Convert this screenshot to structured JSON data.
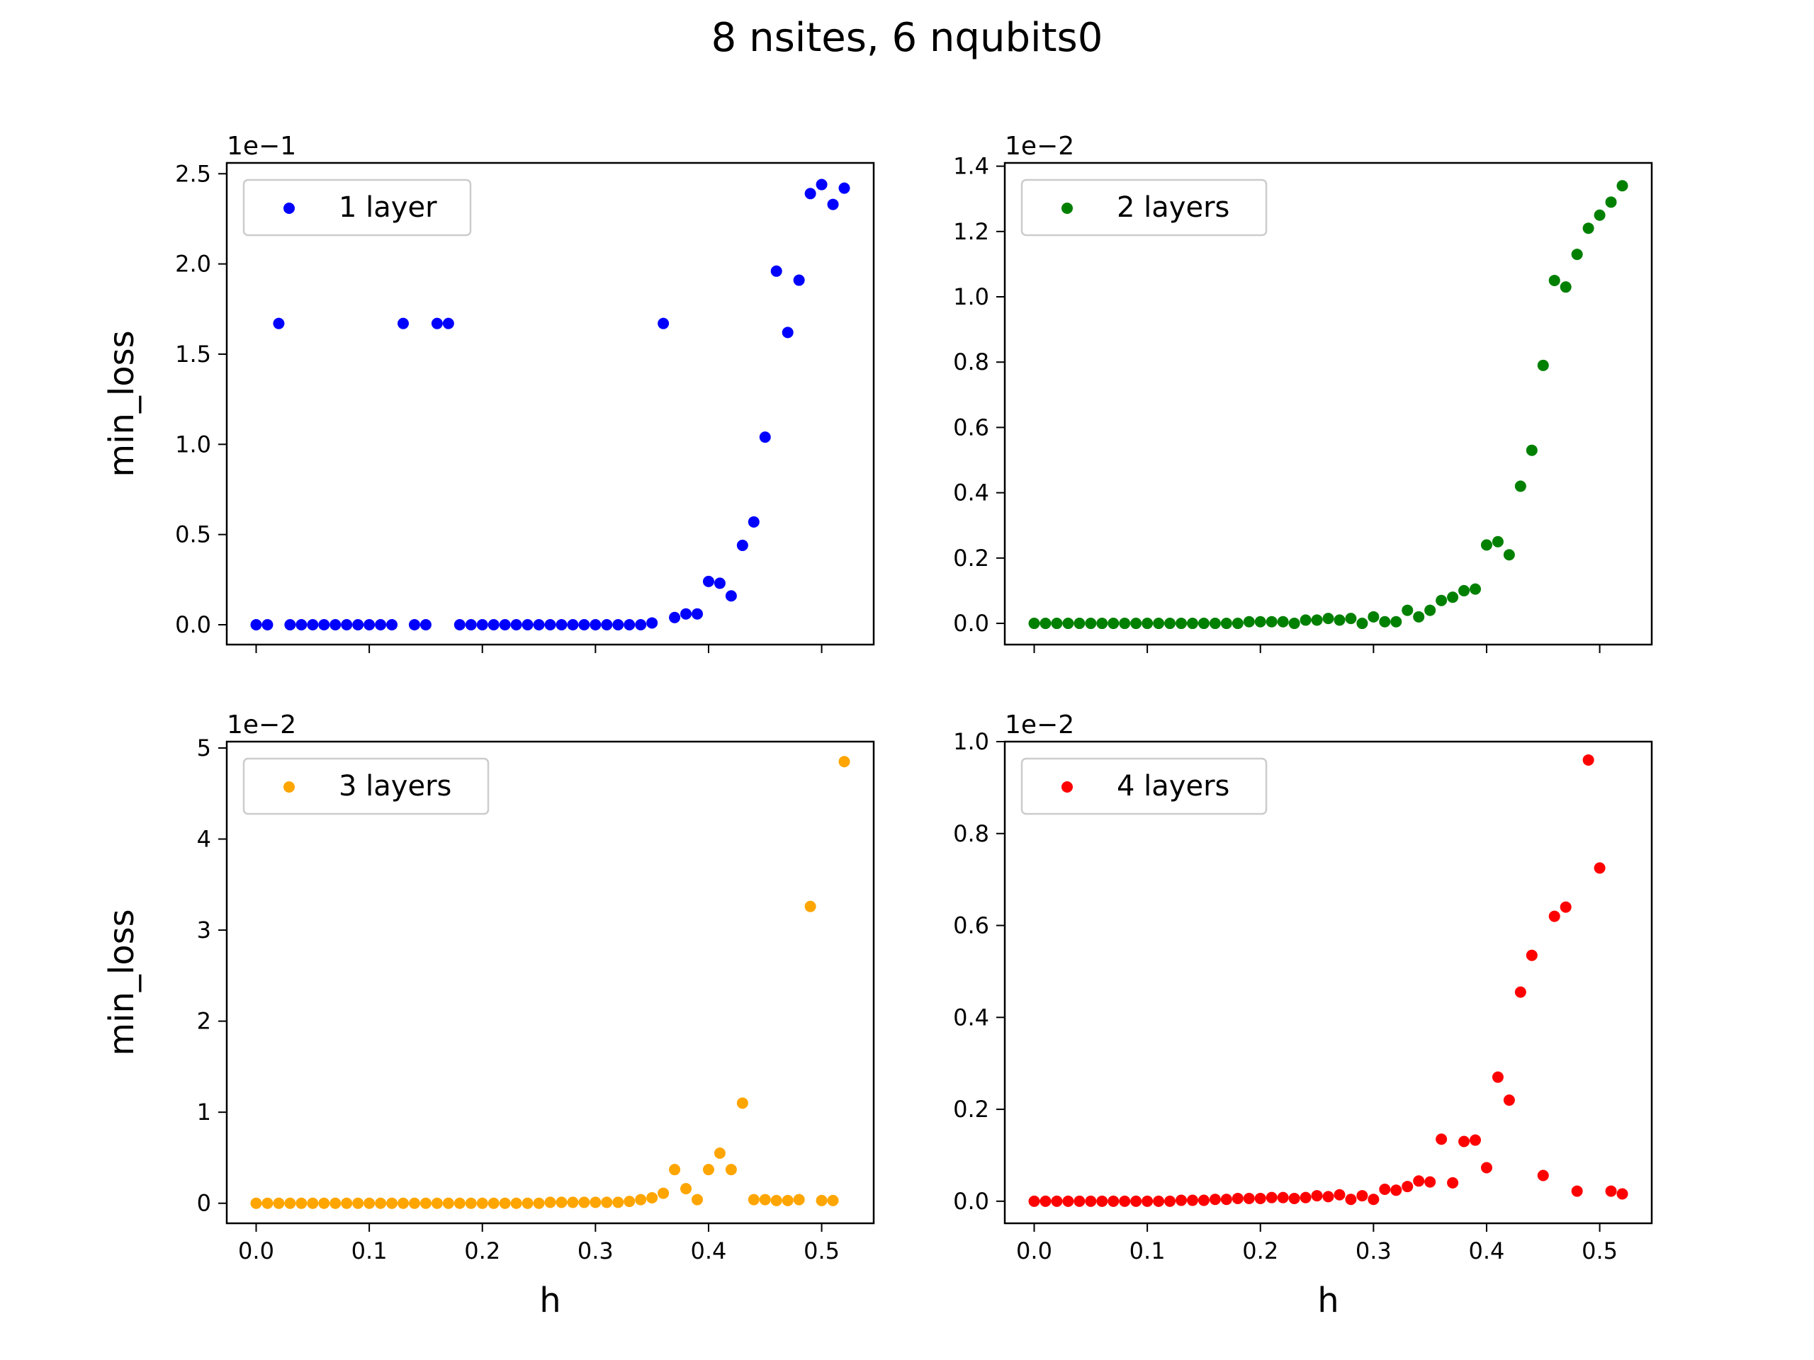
{
  "figure": {
    "title": "8 nsites, 6 nqubits0"
  },
  "chart_data": [
    {
      "type": "scatter",
      "panel": "top-left",
      "color": "#0000ff",
      "legend": "1 layer",
      "legend_placement": "top-left",
      "xlabel": "",
      "ylabel": "min_loss",
      "y_multiplier": "1e−1",
      "xlim": [
        -0.026,
        0.546
      ],
      "ylim": [
        -0.11,
        2.56
      ],
      "xticks": [],
      "yticks": [
        "0.0",
        "0.5",
        "1.0",
        "1.5",
        "2.0",
        "2.5"
      ],
      "ytick_values": [
        0.0,
        0.5,
        1.0,
        1.5,
        2.0,
        2.5
      ],
      "grid": false,
      "x": [
        0.0,
        0.01,
        0.02,
        0.03,
        0.04,
        0.05,
        0.06,
        0.07,
        0.08,
        0.09,
        0.1,
        0.11,
        0.12,
        0.13,
        0.14,
        0.15,
        0.16,
        0.17,
        0.18,
        0.19,
        0.2,
        0.21,
        0.22,
        0.23,
        0.24,
        0.25,
        0.26,
        0.27,
        0.28,
        0.29,
        0.3,
        0.31,
        0.32,
        0.33,
        0.34,
        0.35,
        0.36,
        0.37,
        0.38,
        0.39,
        0.4,
        0.41,
        0.42,
        0.43,
        0.44,
        0.45,
        0.46,
        0.47,
        0.48,
        0.49,
        0.5,
        0.51,
        0.52
      ],
      "y": [
        0.0,
        0.0,
        1.67,
        0.0,
        0.0,
        0.0,
        0.0,
        0.0,
        0.0,
        0.0,
        0.0,
        0.0,
        0.0,
        1.67,
        0.0,
        0.0,
        1.67,
        1.67,
        0.0,
        0.0,
        0.0,
        0.0,
        0.0,
        0.0,
        0.0,
        0.0,
        0.0,
        0.0,
        0.0,
        0.0,
        0.0,
        0.0,
        0.0,
        0.0,
        0.0,
        0.01,
        1.67,
        0.04,
        0.06,
        0.06,
        0.24,
        0.23,
        0.16,
        0.44,
        0.57,
        1.04,
        1.96,
        1.62,
        1.91,
        2.39,
        2.44,
        2.33,
        2.42
      ]
    },
    {
      "type": "scatter",
      "panel": "top-right",
      "color": "#008000",
      "legend": "2 layers",
      "legend_placement": "top-left",
      "xlabel": "",
      "ylabel": "",
      "y_multiplier": "1e−2",
      "xlim": [
        -0.026,
        0.546
      ],
      "ylim": [
        -0.065,
        1.41
      ],
      "xticks": [],
      "yticks": [
        "0.0",
        "0.2",
        "0.4",
        "0.6",
        "0.8",
        "1.0",
        "1.2",
        "1.4"
      ],
      "ytick_values": [
        0.0,
        0.2,
        0.4,
        0.6,
        0.8,
        1.0,
        1.2,
        1.4
      ],
      "grid": false,
      "x": [
        0.0,
        0.01,
        0.02,
        0.03,
        0.04,
        0.05,
        0.06,
        0.07,
        0.08,
        0.09,
        0.1,
        0.11,
        0.12,
        0.13,
        0.14,
        0.15,
        0.16,
        0.17,
        0.18,
        0.19,
        0.2,
        0.21,
        0.22,
        0.23,
        0.24,
        0.25,
        0.26,
        0.27,
        0.28,
        0.29,
        0.3,
        0.31,
        0.32,
        0.33,
        0.34,
        0.35,
        0.36,
        0.37,
        0.38,
        0.39,
        0.4,
        0.41,
        0.42,
        0.43,
        0.44,
        0.45,
        0.46,
        0.47,
        0.48,
        0.49,
        0.5,
        0.51,
        0.52
      ],
      "y": [
        0.0,
        0.0,
        0.0,
        0.0,
        0.0,
        0.0,
        0.0,
        0.0,
        0.0,
        0.0,
        0.0,
        0.0,
        0.0,
        0.0,
        0.0,
        0.0,
        0.0,
        0.0,
        0.0,
        0.005,
        0.005,
        0.005,
        0.005,
        0.0,
        0.01,
        0.01,
        0.015,
        0.01,
        0.015,
        0.0,
        0.02,
        0.005,
        0.005,
        0.04,
        0.02,
        0.04,
        0.07,
        0.08,
        0.1,
        0.105,
        0.24,
        0.25,
        0.21,
        0.42,
        0.53,
        0.79,
        1.05,
        1.03,
        1.13,
        1.21,
        1.25,
        1.29,
        1.34
      ]
    },
    {
      "type": "scatter",
      "panel": "bottom-left",
      "color": "#ffa500",
      "legend": "3 layers",
      "legend_placement": "top-left",
      "xlabel": "h",
      "ylabel": "min_loss",
      "y_multiplier": "1e−2",
      "xlim": [
        -0.026,
        0.546
      ],
      "ylim": [
        -0.22,
        5.07
      ],
      "xticks": [
        "0.0",
        "0.1",
        "0.2",
        "0.3",
        "0.4",
        "0.5"
      ],
      "xtick_values": [
        0.0,
        0.1,
        0.2,
        0.3,
        0.4,
        0.5
      ],
      "yticks": [
        "0",
        "1",
        "2",
        "3",
        "4",
        "5"
      ],
      "ytick_values": [
        0,
        1,
        2,
        3,
        4,
        5
      ],
      "grid": false,
      "x": [
        0.0,
        0.01,
        0.02,
        0.03,
        0.04,
        0.05,
        0.06,
        0.07,
        0.08,
        0.09,
        0.1,
        0.11,
        0.12,
        0.13,
        0.14,
        0.15,
        0.16,
        0.17,
        0.18,
        0.19,
        0.2,
        0.21,
        0.22,
        0.23,
        0.24,
        0.25,
        0.26,
        0.27,
        0.28,
        0.29,
        0.3,
        0.31,
        0.32,
        0.33,
        0.34,
        0.35,
        0.36,
        0.37,
        0.38,
        0.39,
        0.4,
        0.41,
        0.42,
        0.43,
        0.44,
        0.45,
        0.46,
        0.47,
        0.48,
        0.49,
        0.5,
        0.51,
        0.52
      ],
      "y": [
        0.0,
        0.0,
        0.0,
        0.0,
        0.0,
        0.0,
        0.0,
        0.0,
        0.0,
        0.0,
        0.0,
        0.0,
        0.0,
        0.0,
        0.0,
        0.0,
        0.0,
        0.0,
        0.0,
        0.0,
        0.0,
        0.0,
        0.0,
        0.0,
        0.0,
        0.0,
        0.01,
        0.01,
        0.01,
        0.01,
        0.01,
        0.01,
        0.01,
        0.02,
        0.04,
        0.06,
        0.11,
        0.37,
        0.16,
        0.04,
        0.37,
        0.55,
        0.37,
        1.1,
        0.04,
        0.04,
        0.03,
        0.03,
        0.04,
        3.26,
        0.03,
        0.03,
        4.85
      ]
    },
    {
      "type": "scatter",
      "panel": "bottom-right",
      "color": "#ff0000",
      "legend": "4 layers",
      "legend_placement": "top-left",
      "xlabel": "h",
      "ylabel": "",
      "y_multiplier": "1e−2",
      "xlim": [
        -0.026,
        0.546
      ],
      "ylim": [
        -0.048,
        1.0
      ],
      "xticks": [
        "0.0",
        "0.1",
        "0.2",
        "0.3",
        "0.4",
        "0.5"
      ],
      "xtick_values": [
        0.0,
        0.1,
        0.2,
        0.3,
        0.4,
        0.5
      ],
      "yticks": [
        "0.0",
        "0.2",
        "0.4",
        "0.6",
        "0.8",
        "1.0"
      ],
      "ytick_values": [
        0.0,
        0.2,
        0.4,
        0.6,
        0.8,
        1.0
      ],
      "grid": false,
      "x": [
        0.0,
        0.01,
        0.02,
        0.03,
        0.04,
        0.05,
        0.06,
        0.07,
        0.08,
        0.09,
        0.1,
        0.11,
        0.12,
        0.13,
        0.14,
        0.15,
        0.16,
        0.17,
        0.18,
        0.19,
        0.2,
        0.21,
        0.22,
        0.23,
        0.24,
        0.25,
        0.26,
        0.27,
        0.28,
        0.29,
        0.3,
        0.31,
        0.32,
        0.33,
        0.34,
        0.35,
        0.36,
        0.37,
        0.38,
        0.39,
        0.4,
        0.41,
        0.42,
        0.43,
        0.44,
        0.45,
        0.46,
        0.47,
        0.48,
        0.49,
        0.5,
        0.51,
        0.52
      ],
      "y": [
        0.0,
        0.0,
        0.0,
        0.0,
        0.0,
        0.0,
        0.0,
        0.0,
        0.0,
        0.0,
        0.0,
        0.0,
        0.0,
        0.002,
        0.002,
        0.002,
        0.004,
        0.004,
        0.006,
        0.006,
        0.006,
        0.008,
        0.008,
        0.006,
        0.008,
        0.012,
        0.01,
        0.014,
        0.004,
        0.012,
        0.004,
        0.026,
        0.024,
        0.032,
        0.044,
        0.042,
        0.135,
        0.04,
        0.13,
        0.133,
        0.073,
        0.27,
        0.22,
        0.455,
        0.535,
        0.056,
        0.62,
        0.64,
        0.022,
        0.96,
        0.725,
        0.022,
        0.016
      ]
    }
  ]
}
